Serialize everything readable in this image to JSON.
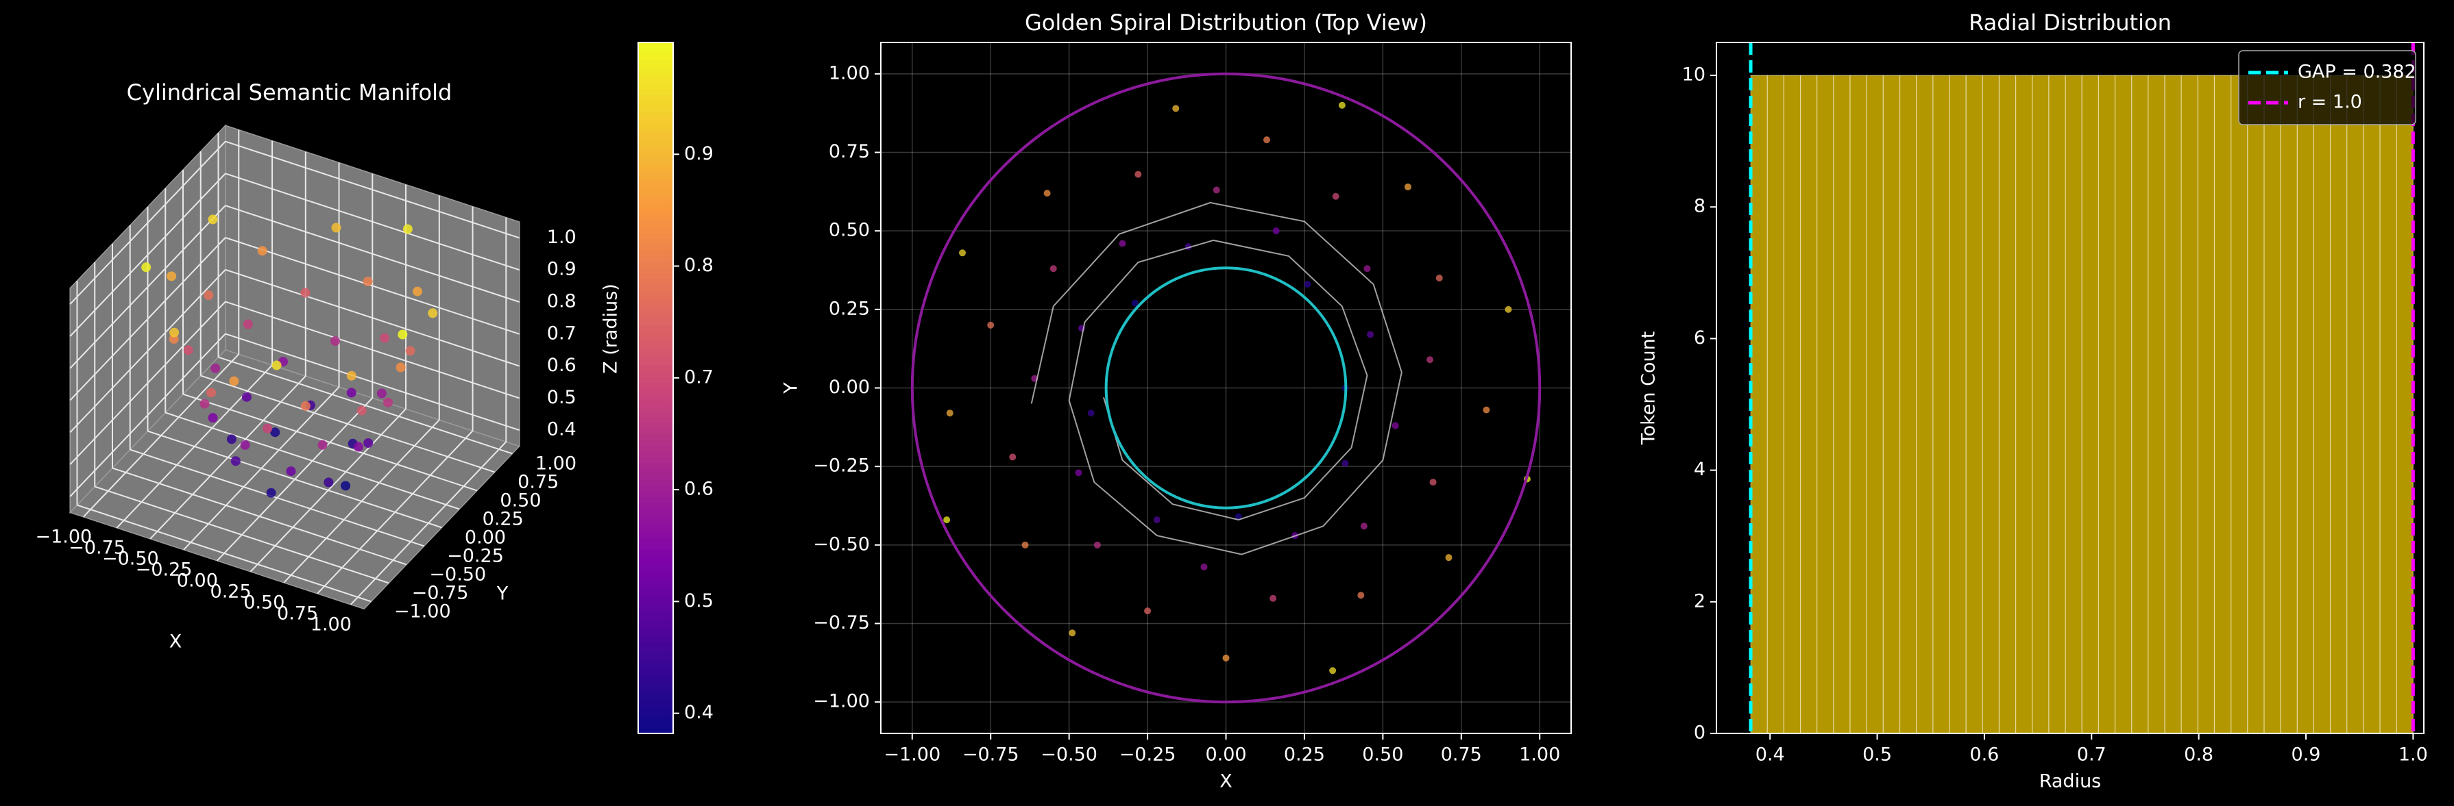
{
  "chart_data": [
    {
      "type": "scatter3d",
      "title": "Cylindrical Semantic Manifold",
      "xlabel": "X",
      "ylabel": "Y",
      "zlabel": "Z (radius)",
      "x": [
        0.38,
        -0.29,
        0.04,
        0.26,
        -0.43,
        0.38,
        -0.12,
        -0.22,
        0.46,
        -0.46,
        0.22,
        0.16,
        -0.47,
        0.54,
        -0.33,
        -0.07,
        0.45,
        -0.61,
        0.44,
        -0.03,
        -0.41,
        0.65,
        -0.55,
        0.15,
        0.35,
        -0.68,
        0.66,
        -0.28,
        -0.25,
        0.68,
        -0.75,
        0.43,
        0.13,
        -0.64,
        0.83,
        -0.57,
        0,
        0.58,
        -0.88,
        0.71,
        -0.16,
        -0.49,
        0.9,
        -0.84,
        0.34,
        0.37,
        -0.89,
        0.96
      ],
      "y": [
        0,
        0.27,
        -0.41,
        0.33,
        -0.08,
        -0.24,
        0.45,
        -0.42,
        0.17,
        0.19,
        -0.47,
        0.5,
        -0.27,
        -0.12,
        0.46,
        -0.57,
        0.38,
        0.03,
        -0.44,
        0.63,
        -0.5,
        0.09,
        0.38,
        -0.67,
        0.61,
        -0.22,
        -0.3,
        0.68,
        -0.71,
        0.35,
        0.2,
        -0.66,
        0.79,
        -0.5,
        -0.07,
        0.62,
        -0.86,
        0.64,
        -0.08,
        -0.54,
        0.89,
        -0.78,
        0.25,
        0.43,
        -0.9,
        0.9,
        -0.42,
        -0.29
      ],
      "z": [
        0.382,
        0.395,
        0.408,
        0.421,
        0.435,
        0.448,
        0.461,
        0.474,
        0.487,
        0.5,
        0.514,
        0.527,
        0.54,
        0.553,
        0.566,
        0.579,
        0.592,
        0.606,
        0.619,
        0.632,
        0.645,
        0.658,
        0.671,
        0.684,
        0.698,
        0.711,
        0.724,
        0.737,
        0.75,
        0.763,
        0.776,
        0.79,
        0.803,
        0.816,
        0.829,
        0.842,
        0.855,
        0.868,
        0.882,
        0.895,
        0.908,
        0.921,
        0.934,
        0.947,
        0.96,
        0.974,
        0.987,
        1.0
      ],
      "colormap": "plasma",
      "clim": [
        0.382,
        1.0
      ],
      "xlim": [
        -1.1,
        1.1
      ],
      "ylim": [
        -1.1,
        1.1
      ],
      "zlim": [
        0.35,
        1.05
      ],
      "xticks": [
        {
          "value": -1,
          "label": "−1.00"
        },
        {
          "value": -0.75,
          "label": "−0.75"
        },
        {
          "value": -0.5,
          "label": "−0.50"
        },
        {
          "value": -0.25,
          "label": "−0.25"
        },
        {
          "value": 0,
          "label": "0.00"
        },
        {
          "value": 0.25,
          "label": "0.25"
        },
        {
          "value": 0.5,
          "label": "0.50"
        },
        {
          "value": 0.75,
          "label": "0.75"
        },
        {
          "value": 1,
          "label": "1.00"
        }
      ],
      "yticks": [
        {
          "value": -1,
          "label": "−1.00"
        },
        {
          "value": -0.75,
          "label": "−0.75"
        },
        {
          "value": -0.5,
          "label": "−0.50"
        },
        {
          "value": -0.25,
          "label": "−0.25"
        },
        {
          "value": 0,
          "label": "0.00"
        },
        {
          "value": 0.25,
          "label": "0.25"
        },
        {
          "value": 0.5,
          "label": "0.50"
        },
        {
          "value": 0.75,
          "label": "0.75"
        },
        {
          "value": 1,
          "label": "1.00"
        }
      ],
      "zticks": [
        0.4,
        0.5,
        0.6,
        0.7,
        0.8,
        0.9,
        {
          "value": 1,
          "label": "1.0"
        }
      ],
      "colorbar_ticks": [
        0.4,
        0.5,
        0.6,
        0.7,
        0.8,
        0.9
      ]
    },
    {
      "type": "scatter",
      "title": "Golden Spiral Distribution (Top View)",
      "xlabel": "X",
      "ylabel": "Y",
      "x": [
        0.38,
        -0.29,
        0.04,
        0.26,
        -0.43,
        0.38,
        -0.12,
        -0.22,
        0.46,
        -0.46,
        0.22,
        0.16,
        -0.47,
        0.54,
        -0.33,
        -0.07,
        0.45,
        -0.61,
        0.44,
        -0.03,
        -0.41,
        0.65,
        -0.55,
        0.15,
        0.35,
        -0.68,
        0.66,
        -0.28,
        -0.25,
        0.68,
        -0.75,
        0.43,
        0.13,
        -0.64,
        0.83,
        -0.57,
        0,
        0.58,
        -0.88,
        0.71,
        -0.16,
        -0.49,
        0.9,
        -0.84,
        0.34,
        0.37,
        -0.89,
        0.96
      ],
      "y": [
        0,
        0.27,
        -0.41,
        0.33,
        -0.08,
        -0.24,
        0.45,
        -0.42,
        0.17,
        0.19,
        -0.47,
        0.5,
        -0.27,
        -0.12,
        0.46,
        -0.57,
        0.38,
        0.03,
        -0.44,
        0.63,
        -0.5,
        0.09,
        0.38,
        -0.67,
        0.61,
        -0.22,
        -0.3,
        0.68,
        -0.71,
        0.35,
        0.2,
        -0.66,
        0.79,
        -0.5,
        -0.07,
        0.62,
        -0.86,
        0.64,
        -0.08,
        -0.54,
        0.89,
        -0.78,
        0.25,
        0.43,
        -0.9,
        0.9,
        -0.42,
        -0.29
      ],
      "c": [
        0.382,
        0.395,
        0.408,
        0.421,
        0.435,
        0.448,
        0.461,
        0.474,
        0.487,
        0.5,
        0.514,
        0.527,
        0.54,
        0.553,
        0.566,
        0.579,
        0.592,
        0.606,
        0.619,
        0.632,
        0.645,
        0.658,
        0.671,
        0.684,
        0.698,
        0.711,
        0.724,
        0.737,
        0.75,
        0.763,
        0.776,
        0.79,
        0.803,
        0.816,
        0.829,
        0.842,
        0.855,
        0.868,
        0.882,
        0.895,
        0.908,
        0.921,
        0.934,
        0.947,
        0.96,
        0.974,
        0.987,
        1.0
      ],
      "colormap": "plasma",
      "clim": [
        0.382,
        1.0
      ],
      "spiral": {
        "color": "#c8c8c8",
        "x": [
          -0.62,
          -0.55,
          -0.34,
          -0.05,
          0.25,
          0.47,
          0.56,
          0.5,
          0.31,
          0.05,
          -0.22,
          -0.42,
          -0.5,
          -0.45,
          -0.28,
          -0.04,
          0.2,
          0.37,
          0.45,
          0.4,
          0.25,
          0.04,
          -0.17,
          -0.33,
          -0.39
        ],
        "y": [
          -0.05,
          0.26,
          0.49,
          0.59,
          0.53,
          0.33,
          0.05,
          -0.23,
          -0.44,
          -0.53,
          -0.47,
          -0.3,
          -0.04,
          0.21,
          0.4,
          0.47,
          0.42,
          0.26,
          0.04,
          -0.19,
          -0.35,
          -0.42,
          -0.37,
          -0.23,
          -0.03
        ]
      },
      "circles": [
        {
          "r": 0.382,
          "color": "#1fbfc4"
        },
        {
          "r": 1.0,
          "color": "#8b1a9b"
        }
      ],
      "xlim": [
        -1.1,
        1.1
      ],
      "ylim": [
        -1.1,
        1.1
      ],
      "grid": true,
      "xticks": [
        {
          "value": -1,
          "label": "−1.00"
        },
        {
          "value": -0.75,
          "label": "−0.75"
        },
        {
          "value": -0.5,
          "label": "−0.50"
        },
        {
          "value": -0.25,
          "label": "−0.25"
        },
        {
          "value": 0,
          "label": "0.00"
        },
        {
          "value": 0.25,
          "label": "0.25"
        },
        {
          "value": 0.5,
          "label": "0.50"
        },
        {
          "value": 0.75,
          "label": "0.75"
        },
        {
          "value": 1,
          "label": "1.00"
        }
      ],
      "yticks": [
        {
          "value": -1,
          "label": "−1.00"
        },
        {
          "value": -0.75,
          "label": "−0.75"
        },
        {
          "value": -0.5,
          "label": "−0.50"
        },
        {
          "value": -0.25,
          "label": "−0.25"
        },
        {
          "value": 0,
          "label": "0.00"
        },
        {
          "value": 0.25,
          "label": "0.25"
        },
        {
          "value": 0.5,
          "label": "0.50"
        },
        {
          "value": 0.75,
          "label": "0.75"
        },
        {
          "value": 1,
          "label": "1.00"
        }
      ]
    },
    {
      "type": "histogram",
      "title": "Radial Distribution",
      "xlabel": "Radius",
      "ylabel": "Token Count",
      "bins": [
        0.382,
        0.3975,
        0.4129,
        0.4284,
        0.4438,
        0.4593,
        0.4747,
        0.4902,
        0.5056,
        0.5211,
        0.5365,
        0.552,
        0.5674,
        0.5829,
        0.5983,
        0.6138,
        0.6292,
        0.6447,
        0.6601,
        0.6756,
        0.691,
        0.7065,
        0.7219,
        0.7374,
        0.7528,
        0.7683,
        0.7837,
        0.7992,
        0.8146,
        0.8301,
        0.8455,
        0.861,
        0.8764,
        0.8919,
        0.9073,
        0.9228,
        0.9382,
        0.9537,
        0.9691,
        0.9846,
        1.0
      ],
      "counts": [
        10,
        10,
        10,
        10,
        10,
        10,
        10,
        10,
        10,
        10,
        10,
        10,
        10,
        10,
        10,
        10,
        10,
        10,
        10,
        10,
        10,
        10,
        10,
        10,
        10,
        10,
        10,
        10,
        10,
        10,
        10,
        10,
        10,
        10,
        10,
        10,
        10,
        10,
        10,
        10
      ],
      "color": "#ffd700",
      "vlines": [
        {
          "value": 0.382,
          "label": "GAP = 0.382",
          "color": "#00ffff"
        },
        {
          "value": 1.0,
          "label": "r = 1.0",
          "color": "#ff00ff"
        }
      ],
      "legend": "upper right",
      "xlim": [
        0.35,
        1.01
      ],
      "ylim": [
        0,
        10.5
      ],
      "xticks": [
        0.4,
        0.5,
        0.6,
        0.7,
        0.8,
        0.9,
        {
          "value": 1,
          "label": "1.0"
        }
      ],
      "yticks": [
        0,
        2,
        4,
        6,
        8,
        10
      ]
    }
  ]
}
